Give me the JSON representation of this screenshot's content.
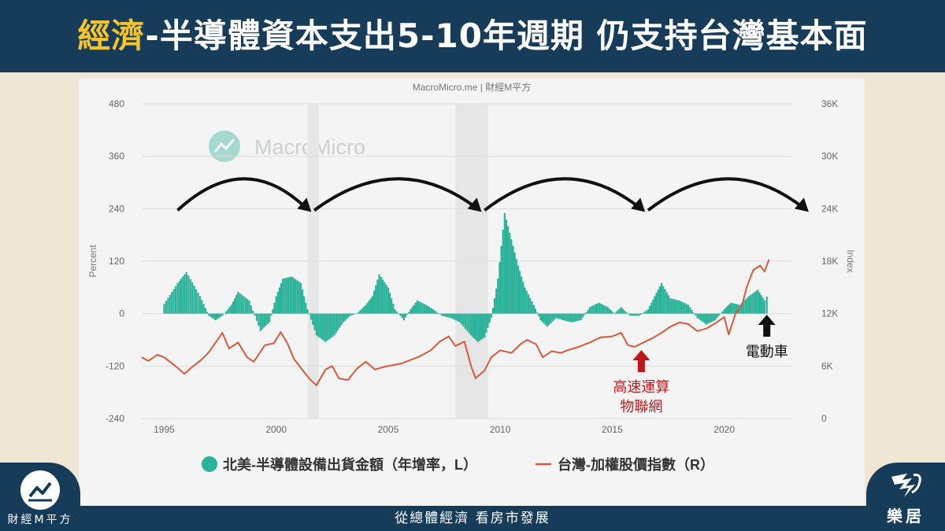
{
  "header": {
    "title_highlight": "經濟",
    "title_rest": "-半導體資本支出5-10年週期 仍支持台灣基本面"
  },
  "footer": {
    "slogan": "從總體經濟 看房市發展",
    "left_logo": "財經M平方",
    "right_logo": "樂居"
  },
  "watermark": "MacroMicro",
  "colors": {
    "bar": "#2bb39a",
    "line": "#d9593a",
    "arrow_red": "#c0171c",
    "arrow_black": "#111111",
    "navy": "#173c5a",
    "gold": "#f4c430"
  },
  "chart_data": {
    "type": "bar",
    "source": "MacroMicro.me | 財經M平方",
    "y_left": {
      "label": "Percent",
      "range": [
        -240,
        480
      ],
      "ticks": [
        "480",
        "360",
        "240",
        "120",
        "0",
        "-120",
        "-240"
      ]
    },
    "y_right": {
      "label": "Index",
      "range": [
        0,
        36000
      ],
      "ticks": [
        "36K",
        "30K",
        "24K",
        "18K",
        "12K",
        "6K",
        "0"
      ]
    },
    "x_axis": {
      "range": [
        1994,
        2023
      ],
      "ticks": [
        "1995",
        "2000",
        "2005",
        "2010",
        "2015",
        "2020"
      ]
    },
    "recession_bands": [
      [
        2001.4,
        2001.9
      ],
      [
        2008.0,
        2009.45
      ]
    ],
    "cycle_arrows": [
      [
        1995.6,
        2001.5
      ],
      [
        2001.7,
        2009.1
      ],
      [
        2009.3,
        2016.4
      ],
      [
        2016.6,
        2023.7
      ]
    ],
    "legend": [
      {
        "name": "北美-半導體設備出貨金額（年增率，L）",
        "marker": "circle"
      },
      {
        "name": "台灣-加權股價指數（R）",
        "marker": "line"
      }
    ],
    "annotations": [
      {
        "lines": [
          "高速運算",
          "物聯網"
        ],
        "x": 2016.3,
        "color": "red"
      },
      {
        "lines": [
          "電動車"
        ],
        "x": 2021.9,
        "color": "black"
      }
    ],
    "series": [
      {
        "name": "北美-半導體設備出貨金額（年增率，L）",
        "kind": "bar",
        "points": [
          [
            1995.0,
            22
          ],
          [
            1995.6,
            70
          ],
          [
            1996.0,
            95
          ],
          [
            1996.6,
            40
          ],
          [
            1997.0,
            -5
          ],
          [
            1997.3,
            -15
          ],
          [
            1997.6,
            -5
          ],
          [
            1998.0,
            20
          ],
          [
            1998.3,
            50
          ],
          [
            1998.8,
            30
          ],
          [
            1999.3,
            -40
          ],
          [
            1999.7,
            -20
          ],
          [
            2000.0,
            40
          ],
          [
            2000.3,
            80
          ],
          [
            2000.7,
            85
          ],
          [
            2001.1,
            70
          ],
          [
            2001.4,
            10
          ],
          [
            2001.8,
            -50
          ],
          [
            2002.2,
            -65
          ],
          [
            2002.6,
            -50
          ],
          [
            2003.0,
            -20
          ],
          [
            2003.3,
            -5
          ],
          [
            2003.6,
            0
          ],
          [
            2004.0,
            20
          ],
          [
            2004.3,
            40
          ],
          [
            2004.6,
            90
          ],
          [
            2005.0,
            60
          ],
          [
            2005.3,
            10
          ],
          [
            2005.7,
            -15
          ],
          [
            2006.0,
            10
          ],
          [
            2006.3,
            30
          ],
          [
            2006.7,
            20
          ],
          [
            2007.0,
            10
          ],
          [
            2007.4,
            -5
          ],
          [
            2007.8,
            -10
          ],
          [
            2008.2,
            -20
          ],
          [
            2008.7,
            -50
          ],
          [
            2009.0,
            -65
          ],
          [
            2009.3,
            -55
          ],
          [
            2009.6,
            -10
          ],
          [
            2009.9,
            80
          ],
          [
            2010.2,
            230
          ],
          [
            2010.5,
            170
          ],
          [
            2010.8,
            110
          ],
          [
            2011.1,
            60
          ],
          [
            2011.5,
            20
          ],
          [
            2011.8,
            -15
          ],
          [
            2012.1,
            -30
          ],
          [
            2012.5,
            -10
          ],
          [
            2012.8,
            -15
          ],
          [
            2013.2,
            -20
          ],
          [
            2013.6,
            -15
          ],
          [
            2014.0,
            15
          ],
          [
            2014.4,
            25
          ],
          [
            2014.8,
            15
          ],
          [
            2015.1,
            0
          ],
          [
            2015.4,
            15
          ],
          [
            2015.8,
            -5
          ],
          [
            2016.2,
            -5
          ],
          [
            2016.6,
            10
          ],
          [
            2016.9,
            40
          ],
          [
            2017.2,
            70
          ],
          [
            2017.6,
            35
          ],
          [
            2018.0,
            30
          ],
          [
            2018.4,
            20
          ],
          [
            2018.8,
            -10
          ],
          [
            2019.2,
            -25
          ],
          [
            2019.6,
            -15
          ],
          [
            2020.0,
            10
          ],
          [
            2020.3,
            25
          ],
          [
            2020.7,
            20
          ],
          [
            2021.1,
            40
          ],
          [
            2021.5,
            55
          ],
          [
            2021.8,
            30
          ],
          [
            2022.0,
            48
          ]
        ]
      },
      {
        "name": "台灣-加權股價指數（R）",
        "kind": "line",
        "points": [
          [
            1994.0,
            7000
          ],
          [
            1994.3,
            6600
          ],
          [
            1994.7,
            7300
          ],
          [
            1995.0,
            7000
          ],
          [
            1995.5,
            6000
          ],
          [
            1995.9,
            5100
          ],
          [
            1996.3,
            6000
          ],
          [
            1996.7,
            6800
          ],
          [
            1997.0,
            7600
          ],
          [
            1997.6,
            9800
          ],
          [
            1997.9,
            8000
          ],
          [
            1998.3,
            8700
          ],
          [
            1998.7,
            7000
          ],
          [
            1999.0,
            6500
          ],
          [
            1999.5,
            8400
          ],
          [
            1999.9,
            8600
          ],
          [
            2000.2,
            9900
          ],
          [
            2000.5,
            8600
          ],
          [
            2000.8,
            6800
          ],
          [
            2001.1,
            5800
          ],
          [
            2001.5,
            4500
          ],
          [
            2001.8,
            3800
          ],
          [
            2002.2,
            5600
          ],
          [
            2002.5,
            6000
          ],
          [
            2002.8,
            4600
          ],
          [
            2003.2,
            4400
          ],
          [
            2003.6,
            5700
          ],
          [
            2004.0,
            6500
          ],
          [
            2004.4,
            5600
          ],
          [
            2004.8,
            5900
          ],
          [
            2005.2,
            6100
          ],
          [
            2005.6,
            6300
          ],
          [
            2006.0,
            6700
          ],
          [
            2006.4,
            7100
          ],
          [
            2006.9,
            7800
          ],
          [
            2007.3,
            8800
          ],
          [
            2007.7,
            9400
          ],
          [
            2008.0,
            8300
          ],
          [
            2008.4,
            8800
          ],
          [
            2008.7,
            6000
          ],
          [
            2008.9,
            4600
          ],
          [
            2009.3,
            5500
          ],
          [
            2009.6,
            7000
          ],
          [
            2010.0,
            7800
          ],
          [
            2010.5,
            7500
          ],
          [
            2010.9,
            8500
          ],
          [
            2011.2,
            9000
          ],
          [
            2011.6,
            8500
          ],
          [
            2011.9,
            7000
          ],
          [
            2012.3,
            7700
          ],
          [
            2012.7,
            7500
          ],
          [
            2013.0,
            7800
          ],
          [
            2013.5,
            8200
          ],
          [
            2014.0,
            8700
          ],
          [
            2014.5,
            9300
          ],
          [
            2015.0,
            9400
          ],
          [
            2015.4,
            9800
          ],
          [
            2015.7,
            8400
          ],
          [
            2016.0,
            8200
          ],
          [
            2016.4,
            8700
          ],
          [
            2016.8,
            9200
          ],
          [
            2017.2,
            9800
          ],
          [
            2017.6,
            10500
          ],
          [
            2018.0,
            11000
          ],
          [
            2018.4,
            10800
          ],
          [
            2018.8,
            10000
          ],
          [
            2019.2,
            10300
          ],
          [
            2019.6,
            10900
          ],
          [
            2020.0,
            11600
          ],
          [
            2020.2,
            9600
          ],
          [
            2020.5,
            12000
          ],
          [
            2020.8,
            13000
          ],
          [
            2021.0,
            15000
          ],
          [
            2021.3,
            17000
          ],
          [
            2021.6,
            17500
          ],
          [
            2021.8,
            16800
          ],
          [
            2021.9,
            17500
          ],
          [
            2022.0,
            18200
          ]
        ]
      }
    ]
  }
}
